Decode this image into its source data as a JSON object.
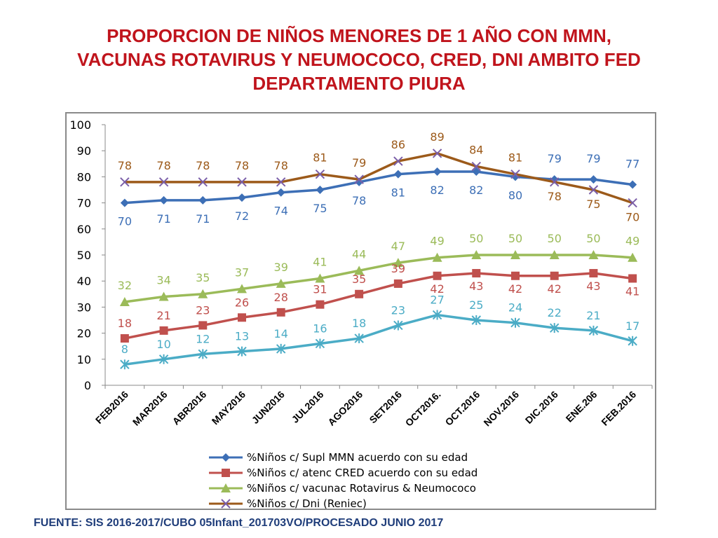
{
  "title_lines": [
    "PROPORCION DE NIÑOS MENORES DE 1 AÑO CON MMN,",
    "VACUNAS ROTAVIRUS Y NEUMOCOCO, CRED, DNI AMBITO FED",
    "DEPARTAMENTO PIURA"
  ],
  "source": "FUENTE: SIS 2016-2017/CUBO 05Infant_201703VO/PROCESADO JUNIO 2017",
  "chart_data": {
    "type": "line",
    "categories": [
      "FEB2016",
      "MAR2016",
      "ABR2016",
      "MAY2016",
      "JUN2016",
      "JUL2016",
      "AGO2016",
      "SET2016",
      "OCT2016.",
      "OCT.2016",
      "NOV.2016",
      "DIC.2016",
      "ENE.206",
      "FEB.2016"
    ],
    "ylim": [
      0,
      100
    ],
    "yticks": [
      0,
      10,
      20,
      30,
      40,
      50,
      60,
      70,
      80,
      90,
      100
    ],
    "grid": false,
    "legend_position": "bottom",
    "series": [
      {
        "name": "%Niños c/ Supl MMN acuerdo con su edad",
        "color": "#3d6fb6",
        "marker": "diamond",
        "values": [
          70,
          71,
          71,
          72,
          74,
          75,
          78,
          81,
          82,
          82,
          80,
          79,
          79,
          77
        ]
      },
      {
        "name": "%Niños c/ atenc CRED acuerdo con su edad",
        "color": "#c0504d",
        "marker": "square",
        "values": [
          18,
          21,
          23,
          26,
          28,
          31,
          35,
          39,
          42,
          43,
          42,
          42,
          43,
          41
        ]
      },
      {
        "name": "%Niños c/ vacunac Rotavirus & Neumococo",
        "color": "#9bbb59",
        "marker": "triangle",
        "values": [
          32,
          34,
          35,
          37,
          39,
          41,
          44,
          47,
          49,
          50,
          50,
          50,
          50,
          49
        ]
      },
      {
        "name": "%Niños c/ Dni (Reniec)",
        "color": "#9c5a1a",
        "marker": "x",
        "values": [
          78,
          78,
          78,
          78,
          78,
          81,
          79,
          86,
          89,
          84,
          81,
          78,
          75,
          70
        ]
      },
      {
        "name": "",
        "color": "#4bacc6",
        "marker": "star",
        "legend": false,
        "values": [
          8,
          10,
          12,
          13,
          14,
          16,
          18,
          23,
          27,
          25,
          24,
          22,
          21,
          17
        ]
      }
    ]
  }
}
